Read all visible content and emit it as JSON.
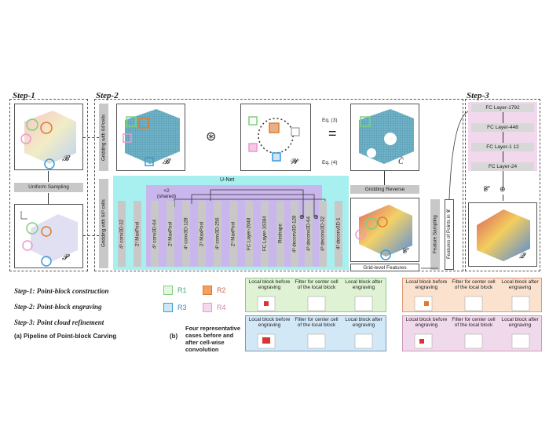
{
  "steps": {
    "step1": "Step-1",
    "step2": "Step-2",
    "step3": "Step-3"
  },
  "symbols": {
    "B": "𝓑",
    "P": "𝓟",
    "W": "𝓦",
    "C": "𝓒",
    "C_hat": "Ĉ",
    "Q": "𝓠"
  },
  "labels": {
    "uniform_sampling": "Uniform Sampling",
    "gridding_top": "Gridding with 64³cells",
    "gridding_bottom": "Gridding with 64³ cells",
    "unet": "U-Net",
    "shared": "×2 (shared)",
    "eq3": "Eq. (3)",
    "eq4": "Eq. (4)",
    "gridding_reverse": "Gridding Reverse",
    "grid_level_features": "Grid-level Features",
    "feature_sampling": "Feature Sampling",
    "features_of_points": "Features of Points in 𝓒",
    "equals": "=",
    "conv_symbol": "⊛",
    "plus_symbol": "⊕"
  },
  "unet_layers": [
    "4³ conv3D-32",
    "2³ MaxPool",
    "4³ conv3D-64",
    "2³ MaxPool",
    "4³ conv3D-128",
    "2³ MaxPool",
    "4³ conv3D-256",
    "2³ MaxPool",
    "FC Layer-2048",
    "FC Layer-16384",
    "Reshape",
    "4³ deconv3D-128",
    "4³ deconv3D-64",
    "4³ deconv3D-32",
    "4³ deconv3D-1"
  ],
  "fc_layers": [
    "FC Layer-1792",
    "FC Layer-448",
    "FC Layer-1 12",
    "FC Layer-24"
  ],
  "step_descriptions": [
    "Step-1: Point-block construction",
    "Step-2: Point-block engraving",
    "Step-3: Point cloud refinement"
  ],
  "caption_a": "(a)  Pipeline of Point-block Carving",
  "caption_b_label": "(b)",
  "caption_b": "Four representative cases before and after cell-wise convolution",
  "legend": [
    {
      "name": "R1",
      "color": "#7cd17c"
    },
    {
      "name": "R2",
      "color": "#e07a2a"
    },
    {
      "name": "R3",
      "color": "#3a9ad9"
    },
    {
      "name": "R4",
      "color": "#e89ad0"
    }
  ],
  "case_headers": [
    "Local block before engraving",
    "Filter for center cell of the local block",
    "Local block after engraving"
  ],
  "colors": {
    "unet_bg": "#a8f0f0",
    "shared_bg": "#c9b6ec",
    "r1_bg": "#dff2d4",
    "r2_bg": "#fbe2cf",
    "r3_bg": "#d3e8f7",
    "r4_bg": "#f1d9ec"
  }
}
